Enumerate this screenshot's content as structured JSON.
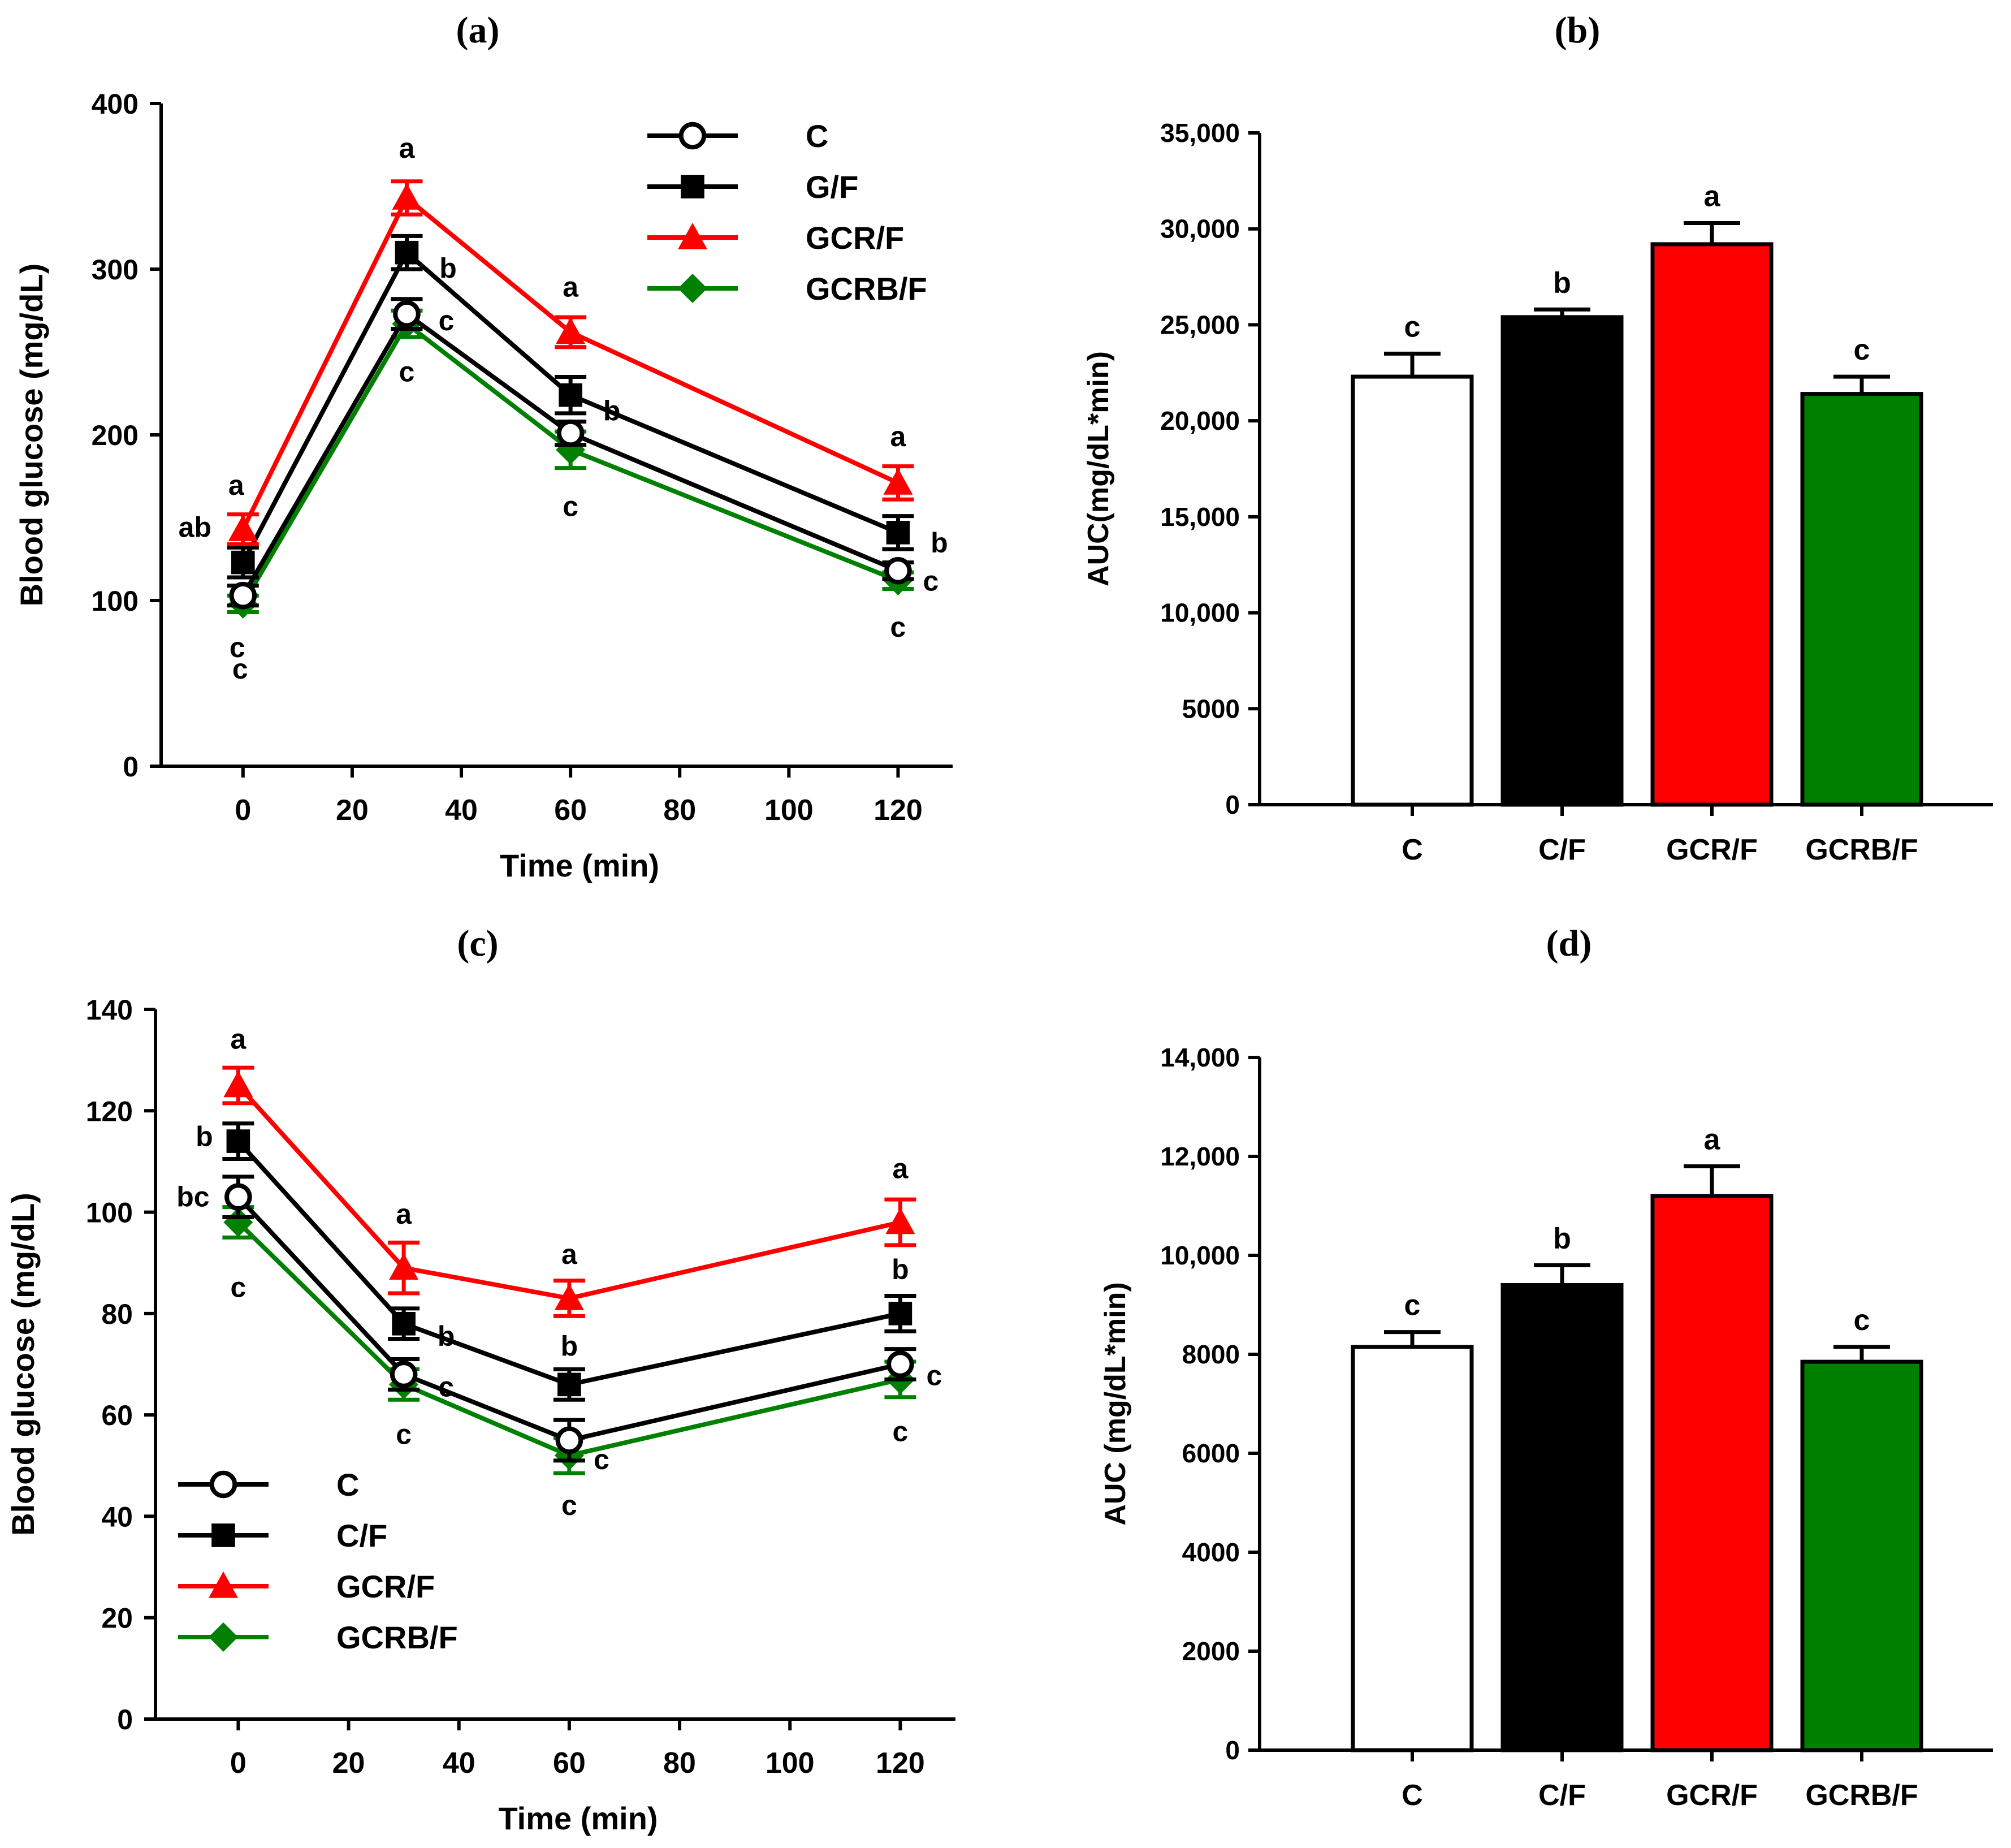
{
  "chart_data": [
    {
      "id": "a",
      "panel_label": "(a)",
      "type": "line",
      "xlabel": "Time (min)",
      "ylabel": "Blood glucose (mg/dL)",
      "xlim": [
        -15,
        130
      ],
      "ylim": [
        0,
        400
      ],
      "xticks": [
        0,
        20,
        40,
        60,
        80,
        100,
        120
      ],
      "yticks": [
        0,
        100,
        200,
        300,
        400
      ],
      "x": [
        0,
        30,
        60,
        120
      ],
      "legend_position": "top-right",
      "series": [
        {
          "name": "C",
          "color": "#000000",
          "marker": "open-circle",
          "values": [
            103,
            273,
            201,
            118
          ],
          "errors": [
            6,
            9,
            7,
            5
          ],
          "labels": [
            "c",
            "c",
            "",
            "c"
          ]
        },
        {
          "name": "G/F",
          "color": "#000000",
          "marker": "square",
          "values": [
            123,
            310,
            224,
            141
          ],
          "errors": [
            9,
            10,
            11,
            10
          ],
          "labels": [
            "ab",
            "b",
            "b",
            "b"
          ]
        },
        {
          "name": "GCR/F",
          "color": "#ff0000",
          "marker": "triangle",
          "values": [
            143,
            343,
            262,
            171
          ],
          "errors": [
            9,
            10,
            9,
            10
          ],
          "labels": [
            "a",
            "a",
            "a",
            "a"
          ]
        },
        {
          "name": "GCRB/F",
          "color": "#008000",
          "marker": "diamond",
          "values": [
            98,
            267,
            191,
            112
          ],
          "errors": [
            5,
            8,
            11,
            5
          ],
          "labels": [
            "c",
            "c",
            "c",
            "c"
          ]
        }
      ]
    },
    {
      "id": "b",
      "panel_label": "(b)",
      "type": "bar",
      "ylabel": "AUC(mg/dL*min)",
      "categories": [
        "C",
        "C/F",
        "GCR/F",
        "GCRB/F"
      ],
      "values": [
        22300,
        25400,
        29200,
        21400
      ],
      "errors": [
        1200,
        400,
        1100,
        900
      ],
      "labels": [
        "c",
        "b",
        "a",
        "c"
      ],
      "colors": [
        "#ffffff",
        "#000000",
        "#ff0000",
        "#008000"
      ],
      "ylim": [
        0,
        35000
      ],
      "yticks": [
        0,
        5000,
        10000,
        15000,
        20000,
        25000,
        30000,
        35000
      ],
      "yticklabels": [
        "0",
        "5000",
        "10,000",
        "15,000",
        "20,000",
        "25,000",
        "30,000",
        "35,000"
      ]
    },
    {
      "id": "c",
      "panel_label": "(c)",
      "type": "line",
      "xlabel": "Time (min)",
      "ylabel": "Blood glucose (mg/dL)",
      "xlim": [
        -15,
        130
      ],
      "ylim": [
        0,
        140
      ],
      "xticks": [
        0,
        20,
        40,
        60,
        80,
        100,
        120
      ],
      "yticks": [
        0,
        20,
        40,
        60,
        80,
        100,
        120,
        140
      ],
      "x": [
        0,
        30,
        60,
        120
      ],
      "legend_position": "bottom-left",
      "series": [
        {
          "name": "C",
          "color": "#000000",
          "marker": "open-circle",
          "values": [
            103,
            68,
            55,
            70
          ],
          "errors": [
            4,
            3,
            4,
            3
          ],
          "labels": [
            "bc",
            "c",
            "c",
            "c"
          ]
        },
        {
          "name": "C/F",
          "color": "#000000",
          "marker": "square",
          "values": [
            114,
            78,
            66,
            80
          ],
          "errors": [
            3.5,
            3,
            3,
            3.5
          ],
          "labels": [
            "b",
            "b",
            "b",
            "b"
          ]
        },
        {
          "name": "GCR/F",
          "color": "#ff0000",
          "marker": "triangle",
          "values": [
            125,
            89,
            83,
            98
          ],
          "errors": [
            3.5,
            5,
            3.5,
            4.5
          ],
          "labels": [
            "a",
            "a",
            "a",
            "a"
          ]
        },
        {
          "name": "GCRB/F",
          "color": "#008000",
          "marker": "diamond",
          "values": [
            98,
            66,
            52,
            67
          ],
          "errors": [
            3,
            3,
            3.5,
            3.5
          ],
          "labels": [
            "c",
            "c",
            "c",
            "c"
          ]
        }
      ]
    },
    {
      "id": "d",
      "panel_label": "(d)",
      "type": "bar",
      "ylabel": "AUC (mg/dL*min)",
      "categories": [
        "C",
        "C/F",
        "GCR/F",
        "GCRB/F"
      ],
      "values": [
        8150,
        9400,
        11200,
        7850
      ],
      "errors": [
        300,
        400,
        600,
        300
      ],
      "labels": [
        "c",
        "b",
        "a",
        "c"
      ],
      "colors": [
        "#ffffff",
        "#000000",
        "#ff0000",
        "#008000"
      ],
      "ylim": [
        0,
        14000
      ],
      "yticks": [
        0,
        2000,
        4000,
        6000,
        8000,
        10000,
        12000,
        14000
      ],
      "yticklabels": [
        "0",
        "2000",
        "4000",
        "6000",
        "8000",
        "10,000",
        "12,000",
        "14,000"
      ]
    }
  ]
}
